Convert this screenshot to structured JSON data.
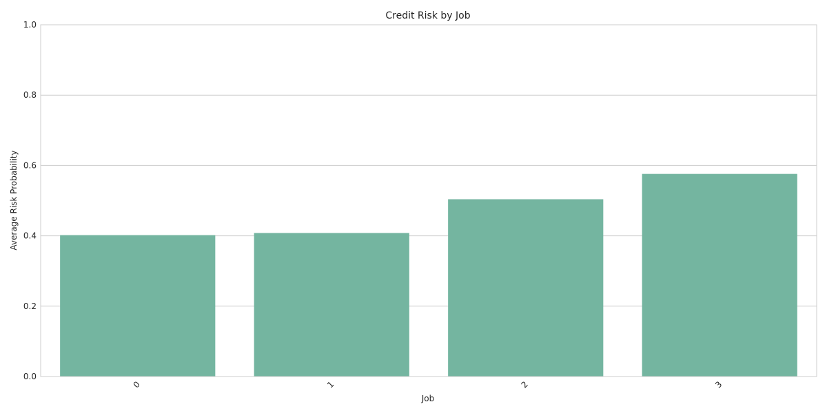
{
  "chart_data": {
    "type": "bar",
    "title": "Credit Risk by Job",
    "xlabel": "Job",
    "ylabel": "Average Risk Probability",
    "categories": [
      "0",
      "1",
      "2",
      "3"
    ],
    "values": [
      0.402,
      0.408,
      0.504,
      0.576
    ],
    "ylim": [
      0,
      1.0
    ],
    "yticks": [
      "0.0",
      "0.2",
      "0.4",
      "0.6",
      "0.8",
      "1.0"
    ],
    "grid": "horizontal",
    "bar_color": "#74b5a0",
    "grid_color": "#cccccc",
    "frame_color": "#cccccc",
    "text_color": "#262626",
    "x_tick_rotation": "-45"
  }
}
